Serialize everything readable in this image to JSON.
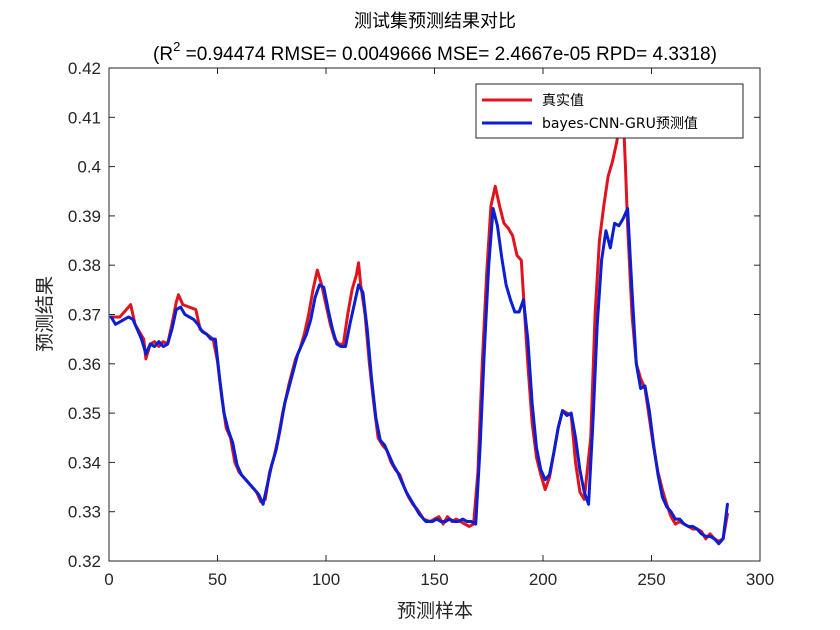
{
  "chart_data": {
    "type": "line",
    "title": "测试集预测结果对比",
    "subtitle": {
      "prefix": "(R",
      "sup": "2",
      "rest": " =0.94474 RMSE= 0.0049666 MSE= 2.4667e-05 RPD= 4.3318)"
    },
    "xlabel": "预测样本",
    "ylabel": "预测结果",
    "xlim": [
      0,
      300
    ],
    "ylim": [
      0.32,
      0.42
    ],
    "xticks": [
      0,
      50,
      100,
      150,
      200,
      250,
      300
    ],
    "xtick_labels": [
      "0",
      "50",
      "100",
      "150",
      "200",
      "250",
      "300"
    ],
    "yticks": [
      0.32,
      0.33,
      0.34,
      0.35,
      0.36,
      0.37,
      0.38,
      0.39,
      0.4,
      0.41,
      0.42
    ],
    "ytick_labels": [
      "0.32",
      "0.33",
      "0.34",
      "0.35",
      "0.36",
      "0.37",
      "0.38",
      "0.39",
      "0.4",
      "0.41",
      "0.42"
    ],
    "grid": false,
    "legend_position": "top-right",
    "series": [
      {
        "name": "真实值",
        "color": "#E0141E",
        "points": [
          [
            1,
            0.3695
          ],
          [
            5,
            0.3695
          ],
          [
            8,
            0.371
          ],
          [
            10,
            0.372
          ],
          [
            12,
            0.368
          ],
          [
            14,
            0.3665
          ],
          [
            16,
            0.365
          ],
          [
            17,
            0.361
          ],
          [
            19,
            0.364
          ],
          [
            21,
            0.3645
          ],
          [
            23,
            0.3635
          ],
          [
            25,
            0.3645
          ],
          [
            27,
            0.364
          ],
          [
            29,
            0.368
          ],
          [
            31,
            0.3725
          ],
          [
            32,
            0.374
          ],
          [
            34,
            0.372
          ],
          [
            37,
            0.3715
          ],
          [
            40,
            0.371
          ],
          [
            42,
            0.367
          ],
          [
            45,
            0.366
          ],
          [
            48,
            0.365
          ],
          [
            50,
            0.3605
          ],
          [
            52,
            0.353
          ],
          [
            54,
            0.347
          ],
          [
            56,
            0.345
          ],
          [
            58,
            0.34
          ],
          [
            60,
            0.338
          ],
          [
            62,
            0.337
          ],
          [
            64,
            0.336
          ],
          [
            66,
            0.335
          ],
          [
            68,
            0.334
          ],
          [
            70,
            0.332
          ],
          [
            72,
            0.3325
          ],
          [
            74,
            0.338
          ],
          [
            76,
            0.341
          ],
          [
            78,
            0.345
          ],
          [
            80,
            0.35
          ],
          [
            83,
            0.356
          ],
          [
            86,
            0.361
          ],
          [
            88,
            0.363
          ],
          [
            90,
            0.366
          ],
          [
            92,
            0.37
          ],
          [
            94,
            0.375
          ],
          [
            96,
            0.379
          ],
          [
            98,
            0.376
          ],
          [
            100,
            0.372
          ],
          [
            102,
            0.368
          ],
          [
            104,
            0.365
          ],
          [
            106,
            0.364
          ],
          [
            108,
            0.364
          ],
          [
            110,
            0.37
          ],
          [
            112,
            0.375
          ],
          [
            114,
            0.378
          ],
          [
            115,
            0.3805
          ],
          [
            116,
            0.376
          ],
          [
            118,
            0.37
          ],
          [
            120,
            0.36
          ],
          [
            122,
            0.352
          ],
          [
            124,
            0.345
          ],
          [
            126,
            0.3435
          ],
          [
            128,
            0.3425
          ],
          [
            130,
            0.34
          ],
          [
            132,
            0.3385
          ],
          [
            134,
            0.3375
          ],
          [
            136,
            0.335
          ],
          [
            138,
            0.333
          ],
          [
            140,
            0.3315
          ],
          [
            142,
            0.3305
          ],
          [
            145,
            0.3285
          ],
          [
            148,
            0.328
          ],
          [
            150,
            0.3285
          ],
          [
            152,
            0.329
          ],
          [
            154,
            0.3275
          ],
          [
            156,
            0.329
          ],
          [
            158,
            0.328
          ],
          [
            160,
            0.3285
          ],
          [
            162,
            0.328
          ],
          [
            164,
            0.3275
          ],
          [
            166,
            0.327
          ],
          [
            168,
            0.3275
          ],
          [
            170,
            0.338
          ],
          [
            172,
            0.36
          ],
          [
            174,
            0.378
          ],
          [
            176,
            0.392
          ],
          [
            178,
            0.396
          ],
          [
            180,
            0.392
          ],
          [
            182,
            0.3885
          ],
          [
            184,
            0.3875
          ],
          [
            186,
            0.386
          ],
          [
            188,
            0.382
          ],
          [
            190,
            0.381
          ],
          [
            191,
            0.374
          ],
          [
            193,
            0.36
          ],
          [
            195,
            0.348
          ],
          [
            197,
            0.341
          ],
          [
            199,
            0.3375
          ],
          [
            201,
            0.3345
          ],
          [
            203,
            0.337
          ],
          [
            205,
            0.342
          ],
          [
            207,
            0.347
          ],
          [
            209,
            0.3505
          ],
          [
            211,
            0.35
          ],
          [
            213,
            0.3495
          ],
          [
            215,
            0.34
          ],
          [
            217,
            0.334
          ],
          [
            219,
            0.3325
          ],
          [
            222,
            0.345
          ],
          [
            224,
            0.37
          ],
          [
            226,
            0.385
          ],
          [
            228,
            0.392
          ],
          [
            230,
            0.398
          ],
          [
            232,
            0.401
          ],
          [
            234,
            0.405
          ],
          [
            236,
            0.4105
          ],
          [
            237,
            0.41
          ],
          [
            238,
            0.4
          ],
          [
            239,
            0.388
          ],
          [
            241,
            0.37
          ],
          [
            243,
            0.36
          ],
          [
            245,
            0.357
          ],
          [
            247,
            0.355
          ],
          [
            249,
            0.349
          ],
          [
            251,
            0.343
          ],
          [
            253,
            0.338
          ],
          [
            255,
            0.3345
          ],
          [
            257,
            0.3315
          ],
          [
            259,
            0.329
          ],
          [
            261,
            0.3275
          ],
          [
            263,
            0.328
          ],
          [
            265,
            0.3275
          ],
          [
            267,
            0.327
          ],
          [
            269,
            0.3265
          ],
          [
            271,
            0.3265
          ],
          [
            273,
            0.326
          ],
          [
            275,
            0.3245
          ],
          [
            277,
            0.3255
          ],
          [
            279,
            0.3245
          ],
          [
            281,
            0.324
          ],
          [
            283,
            0.3245
          ],
          [
            285,
            0.3295
          ]
        ]
      },
      {
        "name": "bayes-CNN-GRU预测值",
        "color": "#0A1ED2",
        "points": [
          [
            1,
            0.3695
          ],
          [
            3,
            0.368
          ],
          [
            5,
            0.3685
          ],
          [
            7,
            0.369
          ],
          [
            9,
            0.3695
          ],
          [
            11,
            0.369
          ],
          [
            13,
            0.367
          ],
          [
            15,
            0.365
          ],
          [
            17,
            0.362
          ],
          [
            19,
            0.364
          ],
          [
            21,
            0.3635
          ],
          [
            23,
            0.3645
          ],
          [
            25,
            0.3635
          ],
          [
            27,
            0.364
          ],
          [
            29,
            0.367
          ],
          [
            31,
            0.371
          ],
          [
            33,
            0.3715
          ],
          [
            35,
            0.37
          ],
          [
            37,
            0.3695
          ],
          [
            39,
            0.369
          ],
          [
            41,
            0.368
          ],
          [
            43,
            0.3665
          ],
          [
            45,
            0.366
          ],
          [
            47,
            0.365
          ],
          [
            49,
            0.365
          ],
          [
            51,
            0.357
          ],
          [
            53,
            0.35
          ],
          [
            55,
            0.3465
          ],
          [
            57,
            0.344
          ],
          [
            59,
            0.3395
          ],
          [
            61,
            0.3375
          ],
          [
            63,
            0.3365
          ],
          [
            65,
            0.3355
          ],
          [
            67,
            0.3345
          ],
          [
            69,
            0.3335
          ],
          [
            71,
            0.3315
          ],
          [
            73,
            0.3355
          ],
          [
            75,
            0.3395
          ],
          [
            77,
            0.3425
          ],
          [
            79,
            0.347
          ],
          [
            81,
            0.352
          ],
          [
            84,
            0.357
          ],
          [
            87,
            0.362
          ],
          [
            89,
            0.364
          ],
          [
            91,
            0.366
          ],
          [
            93,
            0.369
          ],
          [
            95,
            0.3735
          ],
          [
            97,
            0.376
          ],
          [
            99,
            0.3755
          ],
          [
            101,
            0.371
          ],
          [
            103,
            0.367
          ],
          [
            105,
            0.364
          ],
          [
            107,
            0.3635
          ],
          [
            109,
            0.3635
          ],
          [
            111,
            0.368
          ],
          [
            113,
            0.372
          ],
          [
            115,
            0.376
          ],
          [
            117,
            0.3745
          ],
          [
            119,
            0.367
          ],
          [
            121,
            0.357
          ],
          [
            123,
            0.349
          ],
          [
            125,
            0.3445
          ],
          [
            127,
            0.3435
          ],
          [
            129,
            0.3415
          ],
          [
            131,
            0.3395
          ],
          [
            133,
            0.338
          ],
          [
            135,
            0.336
          ],
          [
            137,
            0.334
          ],
          [
            139,
            0.3325
          ],
          [
            141,
            0.331
          ],
          [
            143,
            0.3295
          ],
          [
            146,
            0.328
          ],
          [
            149,
            0.328
          ],
          [
            151,
            0.3285
          ],
          [
            153,
            0.328
          ],
          [
            155,
            0.328
          ],
          [
            157,
            0.3285
          ],
          [
            159,
            0.328
          ],
          [
            161,
            0.328
          ],
          [
            163,
            0.3285
          ],
          [
            165,
            0.328
          ],
          [
            167,
            0.328
          ],
          [
            169,
            0.3275
          ],
          [
            171,
            0.343
          ],
          [
            173,
            0.363
          ],
          [
            175,
            0.38
          ],
          [
            177,
            0.3915
          ],
          [
            179,
            0.388
          ],
          [
            181,
            0.3815
          ],
          [
            183,
            0.376
          ],
          [
            185,
            0.373
          ],
          [
            187,
            0.3705
          ],
          [
            189,
            0.3705
          ],
          [
            191,
            0.373
          ],
          [
            193,
            0.365
          ],
          [
            195,
            0.352
          ],
          [
            197,
            0.343
          ],
          [
            199,
            0.3385
          ],
          [
            201,
            0.3365
          ],
          [
            203,
            0.3375
          ],
          [
            205,
            0.342
          ],
          [
            207,
            0.347
          ],
          [
            209,
            0.3505
          ],
          [
            211,
            0.3495
          ],
          [
            213,
            0.35
          ],
          [
            215,
            0.345
          ],
          [
            217,
            0.3385
          ],
          [
            219,
            0.334
          ],
          [
            221,
            0.3315
          ],
          [
            223,
            0.348
          ],
          [
            225,
            0.368
          ],
          [
            227,
            0.381
          ],
          [
            229,
            0.387
          ],
          [
            231,
            0.3835
          ],
          [
            233,
            0.3885
          ],
          [
            235,
            0.388
          ],
          [
            237,
            0.3895
          ],
          [
            239,
            0.3915
          ],
          [
            241,
            0.375
          ],
          [
            243,
            0.36
          ],
          [
            245,
            0.355
          ],
          [
            247,
            0.3555
          ],
          [
            249,
            0.3505
          ],
          [
            251,
            0.3435
          ],
          [
            253,
            0.3375
          ],
          [
            255,
            0.333
          ],
          [
            257,
            0.331
          ],
          [
            259,
            0.33
          ],
          [
            261,
            0.3285
          ],
          [
            263,
            0.3285
          ],
          [
            265,
            0.3275
          ],
          [
            267,
            0.327
          ],
          [
            269,
            0.327
          ],
          [
            271,
            0.3265
          ],
          [
            273,
            0.3255
          ],
          [
            275,
            0.325
          ],
          [
            277,
            0.325
          ],
          [
            279,
            0.3245
          ],
          [
            281,
            0.3235
          ],
          [
            283,
            0.3245
          ],
          [
            285,
            0.3315
          ]
        ]
      }
    ]
  }
}
